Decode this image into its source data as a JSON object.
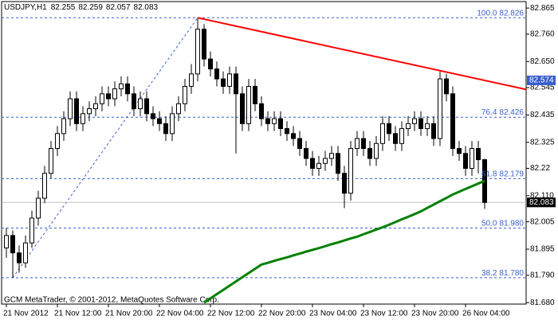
{
  "chart_data": {
    "type": "candlestick",
    "symbol": "USDJPY,H1",
    "copyright": "GCM MetaTrader, © 2001-2012, MetaQuotes Software Corp.",
    "categories": [
      "21 Nov 2012",
      null,
      null,
      null,
      null,
      null,
      null,
      null,
      "21 Nov 12:00",
      null,
      null,
      null,
      null,
      null,
      null,
      null,
      "21 Nov 20:00",
      null,
      null,
      null,
      null,
      null,
      null,
      null,
      "22 Nov 04:00",
      null,
      null,
      null,
      null,
      null,
      null,
      null,
      "22 Nov 12:00",
      null,
      null,
      null,
      null,
      null,
      null,
      null,
      "22 Nov 20:00",
      null,
      null,
      null,
      null,
      null,
      null,
      null,
      "23 Nov 04:00",
      null,
      null,
      null,
      null,
      null,
      null,
      null,
      "23 Nov 12:00",
      null,
      null,
      null,
      null,
      null,
      null,
      null,
      "23 Nov 20:00",
      null,
      null,
      null,
      null,
      null,
      null,
      null,
      "26 Nov 04:00",
      null,
      null,
      null
    ],
    "open": [
      81.9,
      81.95,
      81.88,
      81.84,
      81.92,
      82.02,
      82.1,
      82.2,
      82.3,
      82.36,
      82.42,
      82.5,
      82.4,
      82.44,
      82.46,
      82.48,
      82.52,
      82.5,
      82.54,
      82.56,
      82.52,
      82.46,
      82.5,
      82.44,
      82.42,
      82.4,
      82.36,
      82.44,
      82.48,
      82.55,
      82.6,
      82.78,
      82.66,
      82.62,
      82.58,
      82.55,
      82.6,
      82.52,
      82.4,
      82.55,
      82.48,
      82.42,
      82.4,
      82.42,
      82.38,
      82.36,
      82.34,
      82.3,
      82.26,
      82.22,
      82.24,
      82.26,
      82.28,
      82.2,
      82.12,
      82.3,
      82.34,
      82.3,
      82.26,
      82.32,
      82.4,
      82.36,
      82.32,
      82.38,
      82.4,
      82.42,
      82.38,
      82.4,
      82.34,
      82.58,
      82.52,
      82.3,
      82.28,
      82.22,
      82.3,
      82.255
    ],
    "high": [
      81.98,
      81.97,
      81.91,
      81.95,
      82.05,
      82.13,
      82.23,
      82.33,
      82.39,
      82.45,
      82.53,
      82.53,
      82.47,
      82.49,
      82.51,
      82.55,
      82.55,
      82.57,
      82.59,
      82.59,
      82.55,
      82.53,
      82.53,
      82.47,
      82.45,
      82.43,
      82.47,
      82.51,
      82.58,
      82.64,
      82.826,
      82.8,
      82.69,
      82.65,
      82.61,
      82.63,
      82.63,
      82.55,
      82.58,
      82.58,
      82.51,
      82.45,
      82.45,
      82.45,
      82.41,
      82.39,
      82.37,
      82.33,
      82.29,
      82.27,
      82.29,
      82.31,
      82.31,
      82.23,
      82.33,
      82.37,
      82.37,
      82.33,
      82.35,
      82.43,
      82.43,
      82.39,
      82.41,
      82.43,
      82.45,
      82.45,
      82.43,
      82.43,
      82.61,
      82.6,
      82.55,
      82.33,
      82.31,
      82.33,
      82.33,
      82.259
    ],
    "low": [
      81.86,
      81.78,
      81.8,
      81.82,
      81.9,
      81.99,
      82.08,
      82.18,
      82.27,
      82.33,
      82.39,
      82.37,
      82.37,
      82.41,
      82.43,
      82.45,
      82.47,
      82.47,
      82.51,
      82.49,
      82.43,
      82.43,
      82.41,
      82.39,
      82.37,
      82.33,
      82.33,
      82.41,
      82.45,
      82.52,
      82.57,
      82.63,
      82.59,
      82.55,
      82.52,
      82.52,
      82.28,
      82.37,
      82.37,
      82.45,
      82.39,
      82.37,
      82.37,
      82.35,
      82.33,
      82.31,
      82.27,
      82.23,
      82.19,
      82.19,
      82.21,
      82.23,
      82.17,
      82.06,
      82.09,
      82.27,
      82.27,
      82.23,
      82.23,
      82.29,
      82.33,
      82.29,
      82.29,
      82.35,
      82.37,
      82.35,
      82.35,
      82.31,
      82.31,
      82.49,
      82.27,
      82.25,
      82.19,
      82.19,
      82.2,
      82.057
    ],
    "close": [
      81.95,
      81.88,
      81.84,
      81.92,
      82.02,
      82.1,
      82.2,
      82.3,
      82.36,
      82.42,
      82.5,
      82.4,
      82.44,
      82.46,
      82.48,
      82.52,
      82.5,
      82.54,
      82.56,
      82.52,
      82.46,
      82.5,
      82.44,
      82.42,
      82.4,
      82.36,
      82.44,
      82.48,
      82.55,
      82.6,
      82.78,
      82.66,
      82.62,
      82.58,
      82.55,
      82.6,
      82.52,
      82.4,
      82.55,
      82.48,
      82.42,
      82.4,
      82.42,
      82.38,
      82.36,
      82.34,
      82.3,
      82.26,
      82.22,
      82.24,
      82.26,
      82.28,
      82.2,
      82.12,
      82.3,
      82.34,
      82.3,
      82.26,
      82.32,
      82.4,
      82.36,
      82.32,
      82.38,
      82.4,
      82.42,
      82.38,
      82.4,
      82.34,
      82.58,
      82.52,
      82.3,
      82.28,
      82.22,
      82.3,
      82.255,
      82.083
    ],
    "up_color": "#ffffff",
    "down_color": "#000000",
    "ylim": [
      81.674,
      82.891
    ],
    "yticks": [
      82.865,
      {
        "value": 82.76,
        "label": "82.760"
      },
      {
        "value": 82.65,
        "label": "82.650"
      },
      82.545,
      82.435,
      82.325,
      82.22,
      {
        "value": 82.11,
        "label": "82.110"
      },
      82.005,
      81.895,
      {
        "value": 81.79,
        "label": "81.790"
      },
      {
        "value": 81.68,
        "label": "81.680"
      }
    ],
    "moving_average": {
      "color": "#008000",
      "values": [
        null,
        null,
        null,
        null,
        null,
        null,
        null,
        null,
        null,
        null,
        null,
        null,
        null,
        null,
        null,
        null,
        null,
        null,
        null,
        null,
        null,
        null,
        null,
        null,
        null,
        null,
        null,
        null,
        null,
        null,
        null,
        81.68,
        81.697,
        81.714,
        81.731,
        81.748,
        81.765,
        81.782,
        81.799,
        81.816,
        81.833,
        81.84,
        81.848,
        81.855,
        81.862,
        81.87,
        81.877,
        81.885,
        81.892,
        81.899,
        81.907,
        81.915,
        81.922,
        81.93,
        81.938,
        81.945,
        81.955,
        81.964,
        81.974,
        81.983,
        81.993,
        82.004,
        82.015,
        82.025,
        82.036,
        82.047,
        82.061,
        82.074,
        82.088,
        82.101,
        82.115,
        82.126,
        82.137,
        82.148,
        82.159,
        82.17
      ]
    },
    "trendline": {
      "color": "#ff0000",
      "x": [
        30,
        75
      ],
      "y": [
        82.826,
        82.574
      ]
    },
    "fibonacci": {
      "color": "#3a5fcd",
      "x": [
        1,
        30
      ],
      "levels": [
        "100.0",
        "76.4",
        "61.8",
        "50.0",
        "38.2"
      ],
      "prices": [
        82.826,
        82.426,
        82.179,
        {
          "value": 81.98,
          "label": "81.980"
        },
        {
          "value": 81.78,
          "label": "81.780"
        }
      ]
    }
  }
}
